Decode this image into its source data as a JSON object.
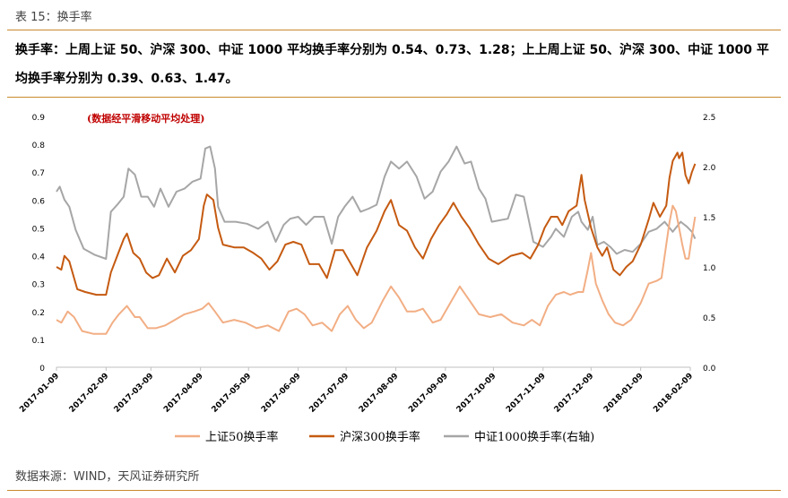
{
  "header": {
    "caption": "表 15：换手率",
    "summary": "换手率：上周上证 50、沪深 300、中证 1000 平均换手率分别为 0.54、0.73、1.28；上上周上证 50、沪深 300、中证 1000 平均换手率分别为 0.39、0.63、1.47。"
  },
  "footer": {
    "source": "数据来源：WIND，天风证券研究所"
  },
  "chart_data": {
    "type": "line",
    "annotation": "(数据经平滑移动平均处理)",
    "x_ticks": [
      "2017-01-09",
      "2017-02-09",
      "2017-03-09",
      "2017-04-09",
      "2017-05-09",
      "2017-06-09",
      "2017-07-09",
      "2017-08-09",
      "2017-09-09",
      "2017-10-09",
      "2017-11-09",
      "2017-12-09",
      "2018-01-09",
      "2018-02-09"
    ],
    "y_left": {
      "lim": [
        0,
        0.9
      ],
      "ticks": [
        "0",
        "0.1",
        "0.2",
        "0.3",
        "0.4",
        "0.5",
        "0.6",
        "0.7",
        "0.8",
        "0.9"
      ]
    },
    "y_right": {
      "lim": [
        0,
        2.5
      ],
      "ticks": [
        "0.0",
        "0.5",
        "1.0",
        "1.5",
        "2.0",
        "2.5"
      ]
    },
    "grid": false,
    "legend_position": "bottom",
    "series": [
      {
        "name": "上证50换手率",
        "color": "#f2ae84",
        "axis": "left",
        "points": [
          [
            "2017-01-09",
            0.17
          ],
          [
            "2017-01-12",
            0.16
          ],
          [
            "2017-01-16",
            0.2
          ],
          [
            "2017-01-20",
            0.18
          ],
          [
            "2017-01-25",
            0.13
          ],
          [
            "2017-02-01",
            0.12
          ],
          [
            "2017-02-09",
            0.12
          ],
          [
            "2017-02-13",
            0.16
          ],
          [
            "2017-02-17",
            0.19
          ],
          [
            "2017-02-22",
            0.22
          ],
          [
            "2017-02-27",
            0.18
          ],
          [
            "2017-03-02",
            0.18
          ],
          [
            "2017-03-07",
            0.14
          ],
          [
            "2017-03-12",
            0.14
          ],
          [
            "2017-03-18",
            0.15
          ],
          [
            "2017-03-24",
            0.17
          ],
          [
            "2017-03-30",
            0.19
          ],
          [
            "2017-04-05",
            0.2
          ],
          [
            "2017-04-10",
            0.21
          ],
          [
            "2017-04-14",
            0.23
          ],
          [
            "2017-04-18",
            0.2
          ],
          [
            "2017-04-23",
            0.16
          ],
          [
            "2017-04-30",
            0.17
          ],
          [
            "2017-05-07",
            0.16
          ],
          [
            "2017-05-14",
            0.14
          ],
          [
            "2017-05-21",
            0.15
          ],
          [
            "2017-05-28",
            0.13
          ],
          [
            "2017-06-03",
            0.2
          ],
          [
            "2017-06-08",
            0.21
          ],
          [
            "2017-06-13",
            0.19
          ],
          [
            "2017-06-18",
            0.15
          ],
          [
            "2017-06-24",
            0.16
          ],
          [
            "2017-06-30",
            0.13
          ],
          [
            "2017-07-05",
            0.19
          ],
          [
            "2017-07-10",
            0.22
          ],
          [
            "2017-07-15",
            0.17
          ],
          [
            "2017-07-20",
            0.14
          ],
          [
            "2017-07-25",
            0.16
          ],
          [
            "2017-08-01",
            0.24
          ],
          [
            "2017-08-06",
            0.29
          ],
          [
            "2017-08-11",
            0.25
          ],
          [
            "2017-08-16",
            0.2
          ],
          [
            "2017-08-21",
            0.2
          ],
          [
            "2017-08-26",
            0.21
          ],
          [
            "2017-09-01",
            0.16
          ],
          [
            "2017-09-06",
            0.17
          ],
          [
            "2017-09-13",
            0.24
          ],
          [
            "2017-09-18",
            0.29
          ],
          [
            "2017-09-24",
            0.24
          ],
          [
            "2017-09-30",
            0.19
          ],
          [
            "2017-10-07",
            0.18
          ],
          [
            "2017-10-14",
            0.19
          ],
          [
            "2017-10-21",
            0.16
          ],
          [
            "2017-10-28",
            0.15
          ],
          [
            "2017-11-02",
            0.17
          ],
          [
            "2017-11-07",
            0.15
          ],
          [
            "2017-11-12",
            0.22
          ],
          [
            "2017-11-17",
            0.26
          ],
          [
            "2017-11-22",
            0.27
          ],
          [
            "2017-11-26",
            0.26
          ],
          [
            "2017-12-01",
            0.27
          ],
          [
            "2017-12-04",
            0.27
          ],
          [
            "2017-12-07",
            0.35
          ],
          [
            "2017-12-09",
            0.41
          ],
          [
            "2017-12-12",
            0.3
          ],
          [
            "2017-12-16",
            0.24
          ],
          [
            "2017-12-20",
            0.19
          ],
          [
            "2017-12-24",
            0.16
          ],
          [
            "2017-12-29",
            0.15
          ],
          [
            "2018-01-03",
            0.17
          ],
          [
            "2018-01-09",
            0.23
          ],
          [
            "2018-01-14",
            0.3
          ],
          [
            "2018-01-19",
            0.31
          ],
          [
            "2018-01-22",
            0.32
          ],
          [
            "2018-01-25",
            0.44
          ],
          [
            "2018-01-27",
            0.52
          ],
          [
            "2018-01-29",
            0.58
          ],
          [
            "2018-01-31",
            0.56
          ],
          [
            "2018-02-02",
            0.5
          ],
          [
            "2018-02-04",
            0.44
          ],
          [
            "2018-02-06",
            0.39
          ],
          [
            "2018-02-08",
            0.39
          ],
          [
            "2018-02-10",
            0.47
          ],
          [
            "2018-02-12",
            0.54
          ]
        ]
      },
      {
        "name": "沪深300换手率",
        "color": "#c55a11",
        "axis": "left",
        "points": [
          [
            "2017-01-09",
            0.36
          ],
          [
            "2017-01-12",
            0.35
          ],
          [
            "2017-01-14",
            0.4
          ],
          [
            "2017-01-17",
            0.38
          ],
          [
            "2017-01-22",
            0.28
          ],
          [
            "2017-01-27",
            0.27
          ],
          [
            "2017-02-03",
            0.26
          ],
          [
            "2017-02-09",
            0.26
          ],
          [
            "2017-02-12",
            0.34
          ],
          [
            "2017-02-16",
            0.4
          ],
          [
            "2017-02-20",
            0.46
          ],
          [
            "2017-02-22",
            0.48
          ],
          [
            "2017-02-26",
            0.41
          ],
          [
            "2017-03-02",
            0.39
          ],
          [
            "2017-03-06",
            0.34
          ],
          [
            "2017-03-10",
            0.32
          ],
          [
            "2017-03-14",
            0.33
          ],
          [
            "2017-03-19",
            0.39
          ],
          [
            "2017-03-24",
            0.34
          ],
          [
            "2017-03-29",
            0.4
          ],
          [
            "2017-04-03",
            0.42
          ],
          [
            "2017-04-08",
            0.46
          ],
          [
            "2017-04-11",
            0.58
          ],
          [
            "2017-04-13",
            0.62
          ],
          [
            "2017-04-17",
            0.6
          ],
          [
            "2017-04-20",
            0.5
          ],
          [
            "2017-04-23",
            0.44
          ],
          [
            "2017-04-30",
            0.43
          ],
          [
            "2017-05-06",
            0.43
          ],
          [
            "2017-05-12",
            0.41
          ],
          [
            "2017-05-17",
            0.39
          ],
          [
            "2017-05-22",
            0.35
          ],
          [
            "2017-05-27",
            0.38
          ],
          [
            "2017-06-01",
            0.44
          ],
          [
            "2017-06-06",
            0.45
          ],
          [
            "2017-06-11",
            0.44
          ],
          [
            "2017-06-16",
            0.37
          ],
          [
            "2017-06-22",
            0.37
          ],
          [
            "2017-06-27",
            0.32
          ],
          [
            "2017-07-02",
            0.42
          ],
          [
            "2017-07-07",
            0.42
          ],
          [
            "2017-07-12",
            0.37
          ],
          [
            "2017-07-16",
            0.33
          ],
          [
            "2017-07-22",
            0.43
          ],
          [
            "2017-07-28",
            0.49
          ],
          [
            "2017-08-02",
            0.56
          ],
          [
            "2017-08-06",
            0.6
          ],
          [
            "2017-08-11",
            0.51
          ],
          [
            "2017-08-16",
            0.49
          ],
          [
            "2017-08-21",
            0.43
          ],
          [
            "2017-08-26",
            0.39
          ],
          [
            "2017-08-31",
            0.46
          ],
          [
            "2017-09-05",
            0.51
          ],
          [
            "2017-09-10",
            0.55
          ],
          [
            "2017-09-14",
            0.59
          ],
          [
            "2017-09-19",
            0.54
          ],
          [
            "2017-09-24",
            0.5
          ],
          [
            "2017-09-30",
            0.44
          ],
          [
            "2017-10-06",
            0.39
          ],
          [
            "2017-10-12",
            0.37
          ],
          [
            "2017-10-20",
            0.4
          ],
          [
            "2017-10-27",
            0.41
          ],
          [
            "2017-11-01",
            0.39
          ],
          [
            "2017-11-06",
            0.44
          ],
          [
            "2017-11-10",
            0.5
          ],
          [
            "2017-11-14",
            0.54
          ],
          [
            "2017-11-18",
            0.54
          ],
          [
            "2017-11-21",
            0.51
          ],
          [
            "2017-11-25",
            0.56
          ],
          [
            "2017-11-30",
            0.58
          ],
          [
            "2017-12-03",
            0.69
          ],
          [
            "2017-12-05",
            0.6
          ],
          [
            "2017-12-09",
            0.5
          ],
          [
            "2017-12-13",
            0.43
          ],
          [
            "2017-12-16",
            0.4
          ],
          [
            "2017-12-19",
            0.43
          ],
          [
            "2017-12-23",
            0.35
          ],
          [
            "2017-12-27",
            0.33
          ],
          [
            "2017-12-31",
            0.36
          ],
          [
            "2018-01-04",
            0.38
          ],
          [
            "2018-01-09",
            0.44
          ],
          [
            "2018-01-14",
            0.53
          ],
          [
            "2018-01-17",
            0.59
          ],
          [
            "2018-01-21",
            0.54
          ],
          [
            "2018-01-25",
            0.58
          ],
          [
            "2018-01-27",
            0.68
          ],
          [
            "2018-01-29",
            0.74
          ],
          [
            "2018-02-01",
            0.77
          ],
          [
            "2018-02-02",
            0.75
          ],
          [
            "2018-02-04",
            0.77
          ],
          [
            "2018-02-06",
            0.69
          ],
          [
            "2018-02-08",
            0.66
          ],
          [
            "2018-02-10",
            0.7
          ],
          [
            "2018-02-12",
            0.73
          ]
        ]
      },
      {
        "name": "中证1000换手率(右轴)",
        "color": "#a6a6a6",
        "axis": "right",
        "points": [
          [
            "2017-01-09",
            1.75
          ],
          [
            "2017-01-11",
            1.8
          ],
          [
            "2017-01-14",
            1.67
          ],
          [
            "2017-01-17",
            1.6
          ],
          [
            "2017-01-21",
            1.37
          ],
          [
            "2017-01-26",
            1.18
          ],
          [
            "2017-02-02",
            1.12
          ],
          [
            "2017-02-09",
            1.08
          ],
          [
            "2017-02-12",
            1.55
          ],
          [
            "2017-02-16",
            1.62
          ],
          [
            "2017-02-20",
            1.7
          ],
          [
            "2017-02-23",
            1.98
          ],
          [
            "2017-02-27",
            1.92
          ],
          [
            "2017-03-03",
            1.7
          ],
          [
            "2017-03-07",
            1.7
          ],
          [
            "2017-03-11",
            1.6
          ],
          [
            "2017-03-15",
            1.78
          ],
          [
            "2017-03-20",
            1.6
          ],
          [
            "2017-03-25",
            1.75
          ],
          [
            "2017-03-30",
            1.78
          ],
          [
            "2017-04-04",
            1.85
          ],
          [
            "2017-04-09",
            1.88
          ],
          [
            "2017-04-12",
            2.18
          ],
          [
            "2017-04-15",
            2.2
          ],
          [
            "2017-04-18",
            1.98
          ],
          [
            "2017-04-20",
            1.6
          ],
          [
            "2017-04-24",
            1.45
          ],
          [
            "2017-05-01",
            1.45
          ],
          [
            "2017-05-08",
            1.43
          ],
          [
            "2017-05-15",
            1.38
          ],
          [
            "2017-05-21",
            1.45
          ],
          [
            "2017-05-26",
            1.25
          ],
          [
            "2017-05-31",
            1.42
          ],
          [
            "2017-06-04",
            1.48
          ],
          [
            "2017-06-09",
            1.5
          ],
          [
            "2017-06-14",
            1.42
          ],
          [
            "2017-06-19",
            1.5
          ],
          [
            "2017-06-25",
            1.5
          ],
          [
            "2017-06-30",
            1.23
          ],
          [
            "2017-07-04",
            1.5
          ],
          [
            "2017-07-08",
            1.6
          ],
          [
            "2017-07-13",
            1.7
          ],
          [
            "2017-07-18",
            1.55
          ],
          [
            "2017-07-23",
            1.58
          ],
          [
            "2017-07-28",
            1.62
          ],
          [
            "2017-08-02",
            1.9
          ],
          [
            "2017-08-06",
            2.05
          ],
          [
            "2017-08-11",
            1.98
          ],
          [
            "2017-08-16",
            2.05
          ],
          [
            "2017-08-22",
            1.9
          ],
          [
            "2017-08-27",
            1.68
          ],
          [
            "2017-09-01",
            1.75
          ],
          [
            "2017-09-06",
            1.95
          ],
          [
            "2017-09-11",
            2.05
          ],
          [
            "2017-09-16",
            2.2
          ],
          [
            "2017-09-21",
            2.03
          ],
          [
            "2017-09-25",
            2.05
          ],
          [
            "2017-09-30",
            1.78
          ],
          [
            "2017-10-04",
            1.68
          ],
          [
            "2017-10-08",
            1.45
          ],
          [
            "2017-10-18",
            1.48
          ],
          [
            "2017-10-23",
            1.72
          ],
          [
            "2017-10-28",
            1.7
          ],
          [
            "2017-11-03",
            1.25
          ],
          [
            "2017-11-09",
            1.2
          ],
          [
            "2017-11-14",
            1.3
          ],
          [
            "2017-11-17",
            1.38
          ],
          [
            "2017-11-22",
            1.3
          ],
          [
            "2017-11-27",
            1.5
          ],
          [
            "2017-12-01",
            1.55
          ],
          [
            "2017-12-03",
            1.45
          ],
          [
            "2017-12-07",
            1.37
          ],
          [
            "2017-12-10",
            1.5
          ],
          [
            "2017-12-13",
            1.22
          ],
          [
            "2017-12-17",
            1.25
          ],
          [
            "2017-12-21",
            1.2
          ],
          [
            "2017-12-25",
            1.13
          ],
          [
            "2017-12-30",
            1.17
          ],
          [
            "2018-01-04",
            1.15
          ],
          [
            "2018-01-09",
            1.23
          ],
          [
            "2018-01-14",
            1.35
          ],
          [
            "2018-01-19",
            1.38
          ],
          [
            "2018-01-24",
            1.45
          ],
          [
            "2018-01-29",
            1.35
          ],
          [
            "2018-02-03",
            1.45
          ],
          [
            "2018-02-07",
            1.4
          ],
          [
            "2018-02-10",
            1.35
          ],
          [
            "2018-02-12",
            1.28
          ]
        ]
      }
    ]
  }
}
